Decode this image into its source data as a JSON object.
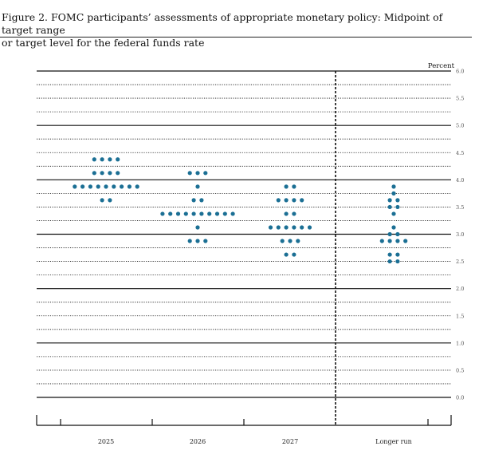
{
  "caption": {
    "line1": "Figure 2.  FOMC participants’ assessments of appropriate monetary policy: Midpoint of target range",
    "line2": "or target level for the federal funds rate"
  },
  "colors": {
    "dot": "#1b6f94",
    "line": "#111111"
  },
  "chart_data": {
    "type": "scatter",
    "title": "",
    "xlabel": "",
    "ylabel": "Percent",
    "ylim": [
      0,
      6.0
    ],
    "y_ticks": [
      "0.0",
      "0.5",
      "1.0",
      "1.5",
      "2.0",
      "2.5",
      "3.0",
      "3.5",
      "4.0",
      "4.5",
      "5.0",
      "5.5",
      "6.0"
    ],
    "categories": [
      "2025",
      "2026",
      "2027",
      "Longer run"
    ],
    "grid": true,
    "dots": [
      {
        "category": "2025",
        "rates": [
          {
            "rate": 4.375,
            "count": 4
          },
          {
            "rate": 4.125,
            "count": 4
          },
          {
            "rate": 3.875,
            "count": 9
          },
          {
            "rate": 3.625,
            "count": 2
          }
        ]
      },
      {
        "category": "2026",
        "rates": [
          {
            "rate": 4.125,
            "count": 3
          },
          {
            "rate": 3.875,
            "count": 1
          },
          {
            "rate": 3.625,
            "count": 2
          },
          {
            "rate": 3.375,
            "count": 10
          },
          {
            "rate": 3.125,
            "count": 1
          },
          {
            "rate": 2.875,
            "count": 3
          }
        ]
      },
      {
        "category": "2027",
        "rates": [
          {
            "rate": 3.875,
            "count": 2
          },
          {
            "rate": 3.625,
            "count": 4
          },
          {
            "rate": 3.375,
            "count": 2
          },
          {
            "rate": 3.125,
            "count": 6
          },
          {
            "rate": 2.875,
            "count": 3
          },
          {
            "rate": 2.625,
            "count": 2
          }
        ]
      },
      {
        "category": "Longer run",
        "rates": [
          {
            "rate": 3.875,
            "count": 1
          },
          {
            "rate": 3.75,
            "count": 1
          },
          {
            "rate": 3.625,
            "count": 2
          },
          {
            "rate": 3.5,
            "count": 2
          },
          {
            "rate": 3.375,
            "count": 1
          },
          {
            "rate": 3.125,
            "count": 1
          },
          {
            "rate": 3.0,
            "count": 2
          },
          {
            "rate": 2.875,
            "count": 4
          },
          {
            "rate": 2.625,
            "count": 2
          },
          {
            "rate": 2.5,
            "count": 2
          }
        ]
      }
    ]
  }
}
